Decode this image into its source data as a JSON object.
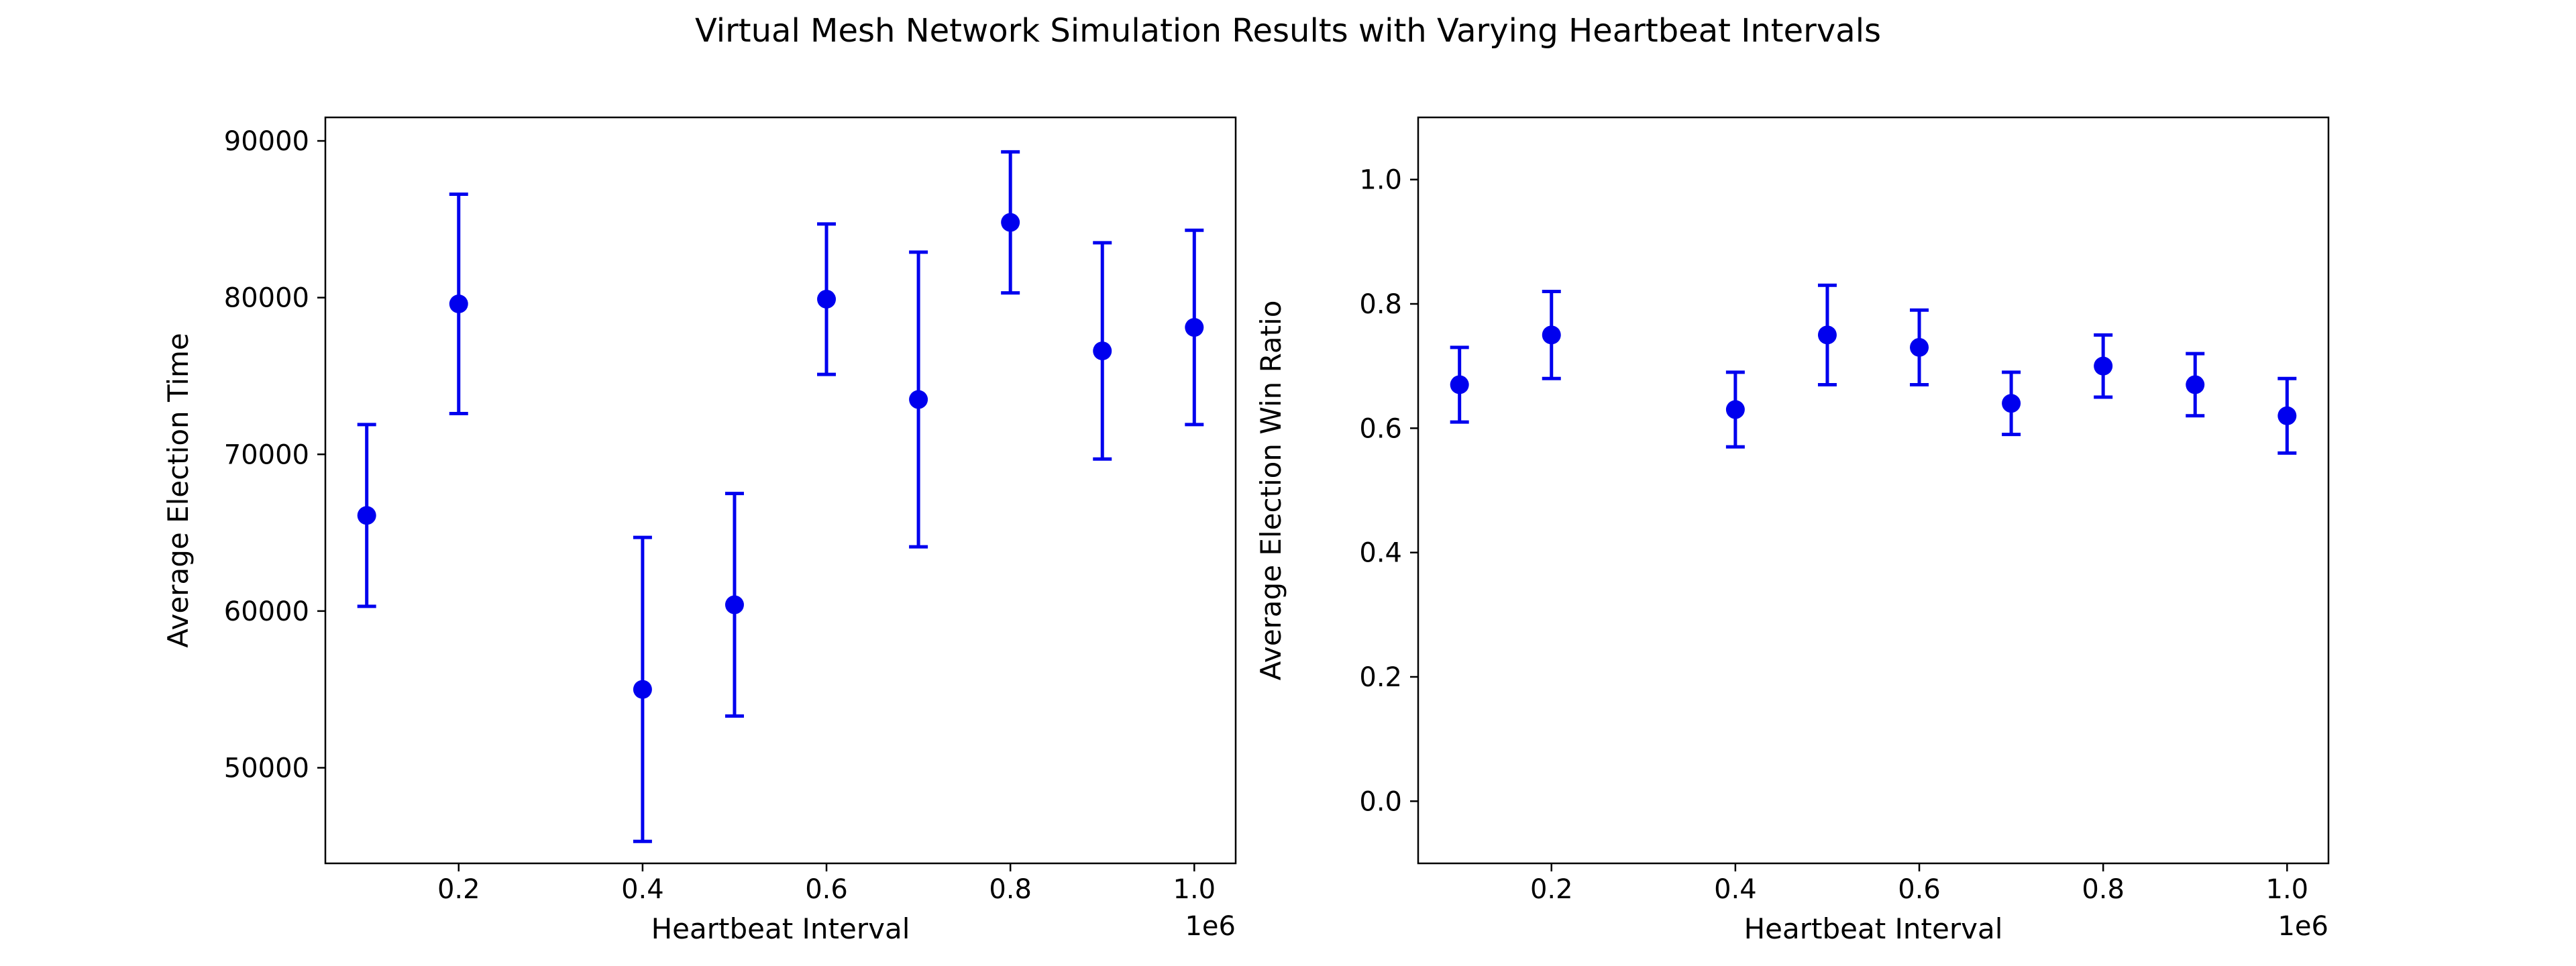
{
  "figure": {
    "title": "Virtual Mesh Network Simulation Results with Varying Heartbeat Intervals"
  },
  "chart_data": [
    {
      "type": "scatter",
      "style": "errorbar",
      "title": "",
      "xlabel": "Heartbeat Interval",
      "ylabel": "Average Election Time",
      "x_offset_label": "1e6",
      "xlim": [
        0.055,
        1.045
      ],
      "ylim": [
        43900,
        91500
      ],
      "xticks": [
        0.2,
        0.4,
        0.6,
        0.8,
        1.0
      ],
      "xtick_labels": [
        "0.2",
        "0.4",
        "0.6",
        "0.8",
        "1.0"
      ],
      "yticks": [
        50000,
        60000,
        70000,
        80000,
        90000
      ],
      "ytick_labels": [
        "50000",
        "60000",
        "70000",
        "80000",
        "90000"
      ],
      "grid": false,
      "legend": "none",
      "color": "#0000ee",
      "series": [
        {
          "x": [
            0.1,
            0.2,
            0.4,
            0.5,
            0.6,
            0.7,
            0.8,
            0.9,
            1.0
          ],
          "y": [
            66100,
            79600,
            55000,
            60400,
            79900,
            73500,
            84800,
            76600,
            78100
          ],
          "err": [
            5800,
            7000,
            9700,
            7100,
            4800,
            9400,
            4500,
            6900,
            6200
          ]
        }
      ]
    },
    {
      "type": "scatter",
      "style": "errorbar",
      "title": "",
      "xlabel": "Heartbeat Interval",
      "ylabel": "Average Election Win Ratio",
      "x_offset_label": "1e6",
      "xlim": [
        0.055,
        1.045
      ],
      "ylim": [
        -0.1,
        1.1
      ],
      "xticks": [
        0.2,
        0.4,
        0.6,
        0.8,
        1.0
      ],
      "xtick_labels": [
        "0.2",
        "0.4",
        "0.6",
        "0.8",
        "1.0"
      ],
      "yticks": [
        0.0,
        0.2,
        0.4,
        0.6,
        0.8,
        1.0
      ],
      "ytick_labels": [
        "0.0",
        "0.2",
        "0.4",
        "0.6",
        "0.8",
        "1.0"
      ],
      "grid": false,
      "legend": "none",
      "color": "#0000ee",
      "series": [
        {
          "x": [
            0.1,
            0.2,
            0.4,
            0.5,
            0.6,
            0.7,
            0.8,
            0.9,
            1.0
          ],
          "y": [
            0.67,
            0.75,
            0.63,
            0.75,
            0.73,
            0.64,
            0.7,
            0.67,
            0.62
          ],
          "err": [
            0.06,
            0.07,
            0.06,
            0.08,
            0.06,
            0.05,
            0.05,
            0.05,
            0.06
          ]
        }
      ]
    }
  ]
}
